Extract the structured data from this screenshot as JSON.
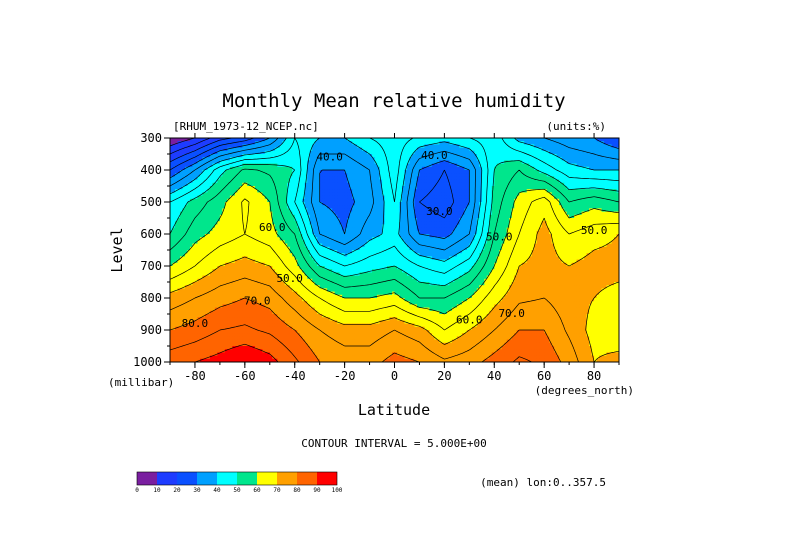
{
  "title": "Monthly Mean relative humidity",
  "dataset_label": "[RHUM_1973-12_NCEP.nc]",
  "units_label": "(units:%)",
  "contour_interval": "CONTOUR INTERVAL = 5.000E+00",
  "mean_label": "(mean) lon:0..357.5",
  "chart_data": {
    "type": "heatmap",
    "title": "Monthly Mean relative humidity",
    "xlabel": "Latitude",
    "xunits": "(degrees_north)",
    "ylabel": "Level",
    "yunits": "(millibar)",
    "xlim": [
      -90,
      90
    ],
    "ylim": [
      1000,
      300
    ],
    "x_ticks": [
      -80,
      -60,
      -40,
      -20,
      0,
      20,
      40,
      60,
      80
    ],
    "x_tick_labels": [
      "-80",
      "-60",
      "-40",
      "-20",
      "0",
      "20",
      "40",
      "60",
      "80"
    ],
    "y_ticks": [
      300,
      400,
      500,
      600,
      700,
      800,
      900,
      1000
    ],
    "y_tick_labels": [
      "300",
      "400",
      "500",
      "600",
      "700",
      "800",
      "900",
      "1000"
    ],
    "contour_interval": 5,
    "lat": [
      -90,
      -80,
      -70,
      -60,
      -50,
      -40,
      -30,
      -20,
      -10,
      0,
      10,
      20,
      30,
      40,
      50,
      60,
      70,
      80,
      90
    ],
    "levels": [
      300,
      400,
      500,
      600,
      700,
      800,
      900,
      1000
    ],
    "values": [
      [
        5,
        10,
        18,
        22,
        30,
        45,
        40,
        40,
        45,
        48,
        44,
        42,
        45,
        48,
        38,
        35,
        32,
        30,
        25
      ],
      [
        25,
        35,
        48,
        56,
        54,
        50,
        30,
        30,
        35,
        48,
        30,
        25,
        30,
        50,
        55,
        48,
        42,
        40,
        40
      ],
      [
        45,
        52,
        58,
        66,
        60,
        45,
        30,
        28,
        33,
        45,
        25,
        22,
        30,
        52,
        62,
        68,
        55,
        58,
        55
      ],
      [
        50,
        58,
        62,
        65,
        62,
        55,
        35,
        30,
        38,
        42,
        30,
        28,
        35,
        55,
        65,
        72,
        65,
        68,
        70
      ],
      [
        60,
        65,
        70,
        72,
        70,
        62,
        50,
        45,
        48,
        50,
        45,
        42,
        48,
        60,
        70,
        72,
        70,
        72,
        72
      ],
      [
        72,
        75,
        78,
        80,
        78,
        72,
        65,
        60,
        60,
        62,
        55,
        55,
        60,
        68,
        74,
        75,
        72,
        70,
        68
      ],
      [
        80,
        82,
        85,
        86,
        84,
        80,
        75,
        72,
        72,
        75,
        72,
        65,
        70,
        75,
        80,
        80,
        74,
        68,
        66
      ],
      [
        88,
        90,
        92,
        95,
        92,
        86,
        80,
        78,
        78,
        82,
        80,
        76,
        78,
        82,
        86,
        84,
        78,
        70,
        72
      ]
    ],
    "contour_labels": [
      {
        "text": "40.0",
        "lat": -26,
        "lev": 370
      },
      {
        "text": "40.0",
        "lat": 16,
        "lev": 365
      },
      {
        "text": "30.0",
        "lat": 18,
        "lev": 540
      },
      {
        "text": "50.0",
        "lat": 42,
        "lev": 620
      },
      {
        "text": "50.0",
        "lat": 80,
        "lev": 600
      },
      {
        "text": "60.0",
        "lat": -49,
        "lev": 590
      },
      {
        "text": "50.0",
        "lat": -42,
        "lev": 750
      },
      {
        "text": "70.0",
        "lat": -55,
        "lev": 820
      },
      {
        "text": "80.0",
        "lat": -80,
        "lev": 890
      },
      {
        "text": "60.0",
        "lat": 30,
        "lev": 880
      },
      {
        "text": "70.0",
        "lat": 47,
        "lev": 860
      }
    ],
    "colorbar": {
      "bounds": [
        0,
        10,
        20,
        30,
        40,
        50,
        60,
        70,
        80,
        90,
        100
      ],
      "tick_labels": [
        "0",
        "10",
        "20",
        "30",
        "40",
        "50",
        "60",
        "70",
        "80",
        "90",
        "100"
      ]
    },
    "colors": [
      {
        "from": 0,
        "to": 10,
        "color": "#7a1fa0"
      },
      {
        "from": 10,
        "to": 20,
        "color": "#1e3cff"
      },
      {
        "from": 20,
        "to": 30,
        "color": "#0a50ff"
      },
      {
        "from": 30,
        "to": 40,
        "color": "#00a0ff"
      },
      {
        "from": 40,
        "to": 50,
        "color": "#00ffff"
      },
      {
        "from": 50,
        "to": 60,
        "color": "#00e68c"
      },
      {
        "from": 60,
        "to": 70,
        "color": "#ffff00"
      },
      {
        "from": 70,
        "to": 80,
        "color": "#ffa000"
      },
      {
        "from": 80,
        "to": 90,
        "color": "#ff6400"
      },
      {
        "from": 90,
        "to": 100,
        "color": "#ff0000"
      }
    ]
  }
}
